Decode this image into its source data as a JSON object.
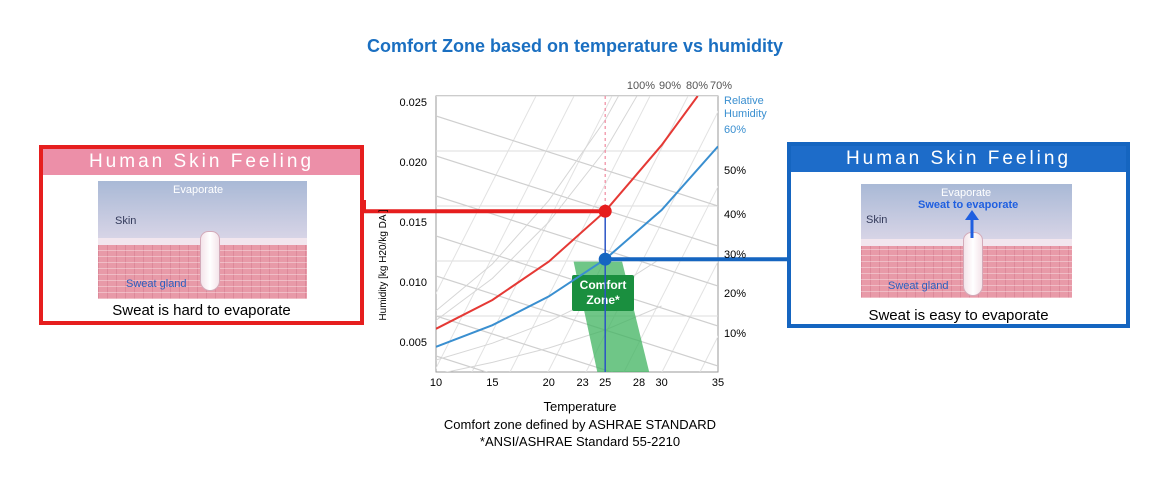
{
  "title": "Comfort Zone based on temperature vs humidity",
  "left_panel": {
    "heading": "Human Skin Feeling",
    "evaporate_label": "Evaporate",
    "skin_label": "Skin",
    "gland_label": "Sweat gland",
    "caption": "Sweat is hard to evaporate",
    "accent": "#e61e1e"
  },
  "right_panel": {
    "heading": "Human Skin Feeling",
    "evaporate_label": "Evaporate",
    "arrow_label": "Sweat to evaporate",
    "skin_label": "Skin",
    "gland_label": "Sweat gland",
    "caption": "Sweat is easy to evaporate",
    "accent": "#1565c0"
  },
  "chart_data": {
    "type": "line",
    "xlabel": "Temperature",
    "ylabel": "Humidity [kg H20/kg DA ]",
    "x_ticks": [
      "10",
      "15",
      "20",
      "23",
      "25",
      "28",
      "30",
      "35"
    ],
    "y_ticks": [
      "0.025",
      "0.020",
      "0.015",
      "0.010",
      "0.005"
    ],
    "xlim": [
      10,
      35
    ],
    "ylim": [
      0.0025,
      0.0255
    ],
    "rh_top_labels": [
      "100%",
      "90%",
      "80%",
      "70%"
    ],
    "rh_title": "Relative\nHumidity",
    "rh_right_labels": [
      "60%",
      "50%",
      "40%",
      "30%",
      "20%",
      "10%"
    ],
    "comfort_zone_label": "Comfort\nZone*",
    "series": [
      {
        "name": "80%",
        "color": "#e53935",
        "x": [
          10,
          15,
          20,
          25,
          30,
          33.2
        ],
        "y": [
          0.0061,
          0.0085,
          0.0117,
          0.0159,
          0.0214,
          0.0255
        ]
      },
      {
        "name": "60%",
        "color": "#3a8fd0",
        "x": [
          10,
          15,
          20,
          25,
          30,
          35
        ],
        "y": [
          0.0046,
          0.0064,
          0.0088,
          0.0119,
          0.016,
          0.0213
        ]
      }
    ],
    "points": [
      {
        "x": 25,
        "y": 0.0159,
        "color": "#e61e1e"
      },
      {
        "x": 25,
        "y": 0.0119,
        "color": "#1565c0"
      }
    ],
    "comfort_zone": [
      [
        22.2,
        0.0117
      ],
      [
        26.5,
        0.0117
      ],
      [
        28.9,
        0.0025
      ],
      [
        24.3,
        0.0025
      ]
    ]
  },
  "footer": {
    "line1": "Comfort zone defined by ASHRAE STANDARD",
    "line2": "*ANSI/ASHRAE Standard 55-2210"
  }
}
